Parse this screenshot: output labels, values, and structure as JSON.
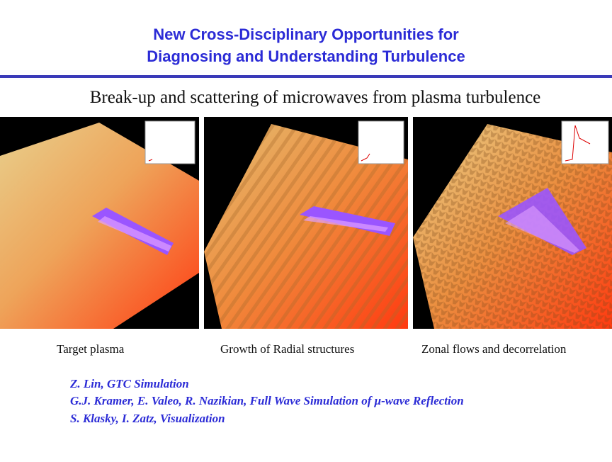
{
  "header": {
    "title_line1": "New Cross-Disciplinary Opportunities for",
    "title_line2": "Diagnosing and Understanding Turbulence",
    "subtitle": "Break-up and scattering of microwaves from plasma turbulence"
  },
  "panels": [
    {
      "caption": "Target plasma"
    },
    {
      "caption": "Growth of Radial structures"
    },
    {
      "caption": "Zonal flows and decorrelation"
    }
  ],
  "credits": {
    "line1": "Z. Lin, GTC Simulation",
    "line2": "G.J. Kramer, E. Valeo, R. Nazikian, Full Wave Simulation of  μ-wave Reflection",
    "line3": "S. Klasky, I. Zatz, Visualization"
  },
  "colors": {
    "title": "#2b2bd6",
    "rule": "#3a3ab8",
    "surface_light": "#e6c279",
    "surface_mid": "#f08a3c",
    "surface_dark": "#ff3a10",
    "beam": "#8a4bff"
  }
}
